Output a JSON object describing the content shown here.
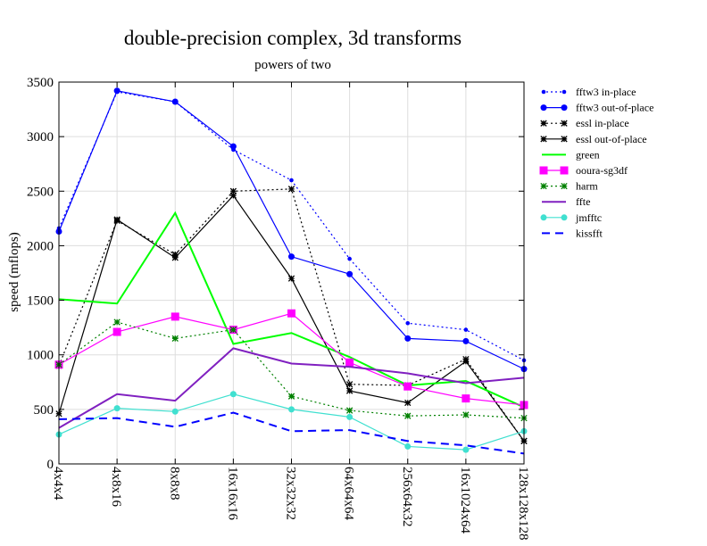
{
  "chart_data": {
    "type": "line",
    "title": "double-precision complex, 3d transforms",
    "subtitle": "powers of two",
    "xlabel": "",
    "ylabel": "speed (mflops)",
    "ylim": [
      0,
      3500
    ],
    "yticks": [
      0,
      500,
      1000,
      1500,
      2000,
      2500,
      3000,
      3500
    ],
    "grid": true,
    "legend_position": "right",
    "categories": [
      "4x4x4",
      "4x8x16",
      "8x8x8",
      "16x16x16",
      "32x32x32",
      "64x64x64",
      "256x64x32",
      "16x1024x64",
      "128x128x128"
    ],
    "series": [
      {
        "name": "fftw3 in-place",
        "color": "#0000ff",
        "dash": "dotted",
        "marker": "dot-small",
        "values": [
          2160,
          3410,
          3320,
          2880,
          2600,
          1880,
          1290,
          1230,
          950
        ]
      },
      {
        "name": "fftw3 out-of-place",
        "color": "#0000ff",
        "dash": "solid",
        "marker": "dot",
        "values": [
          2130,
          3420,
          3320,
          2910,
          1900,
          1740,
          1150,
          1125,
          870
        ]
      },
      {
        "name": "essl in-place",
        "color": "#000000",
        "dash": "dotted",
        "marker": "star",
        "values": [
          900,
          2230,
          1920,
          2500,
          2520,
          730,
          720,
          960,
          210
        ]
      },
      {
        "name": "essl out-of-place",
        "color": "#000000",
        "dash": "solid",
        "marker": "star",
        "values": [
          460,
          2240,
          1890,
          2460,
          1700,
          670,
          560,
          940,
          210
        ]
      },
      {
        "name": "green",
        "color": "#00ff00",
        "dash": "solid",
        "marker": "none",
        "values": [
          1510,
          1470,
          2300,
          1100,
          1200,
          980,
          720,
          760,
          520
        ]
      },
      {
        "name": "ooura-sg3df",
        "color": "#ff00ff",
        "dash": "solid",
        "marker": "square",
        "values": [
          910,
          1210,
          1350,
          1230,
          1380,
          930,
          710,
          600,
          540
        ]
      },
      {
        "name": "harm",
        "color": "#008000",
        "dash": "dotted",
        "marker": "star",
        "values": [
          910,
          1300,
          1150,
          1230,
          620,
          490,
          440,
          450,
          420
        ]
      },
      {
        "name": "ffte",
        "color": "#8020c0",
        "dash": "solid",
        "marker": "none",
        "values": [
          330,
          640,
          580,
          1060,
          920,
          890,
          830,
          740,
          790
        ]
      },
      {
        "name": "jmfftc",
        "color": "#40e0d0",
        "dash": "solid",
        "marker": "dot",
        "values": [
          270,
          510,
          480,
          640,
          500,
          430,
          160,
          130,
          300
        ]
      },
      {
        "name": "kissfft",
        "color": "#0000ff",
        "dash": "dashed",
        "marker": "none",
        "values": [
          410,
          420,
          340,
          470,
          300,
          310,
          210,
          170,
          95
        ]
      }
    ]
  }
}
